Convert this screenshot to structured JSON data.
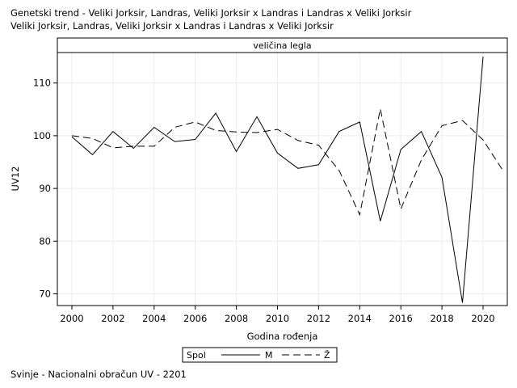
{
  "title_lines": [
    "Genetski trend - Veliki Jorksir, Landras, Veliki Jorksir x Landras i Landras x Veliki Jorksir",
    "Veliki Jorksir, Landras, Veliki Jorksir x Landras i Landras x Veliki Jorksir"
  ],
  "footnote": "Svinje - Nacionalni obračun UV - 2201",
  "chart_data": {
    "type": "line",
    "panel_label": "veličina legla",
    "xlabel": "Godina rođenja",
    "ylabel": "UV12",
    "xlim": [
      2000,
      2021
    ],
    "ylim": [
      68,
      115.5
    ],
    "xticks": [
      2000,
      2002,
      2004,
      2006,
      2008,
      2010,
      2012,
      2014,
      2016,
      2018,
      2020
    ],
    "yticks": [
      70,
      80,
      90,
      100,
      110
    ],
    "grid": true,
    "legend": {
      "title": "Spol",
      "position": "bottom-center"
    },
    "x": [
      2000,
      2001,
      2002,
      2003,
      2004,
      2005,
      2006,
      2007,
      2008,
      2009,
      2010,
      2011,
      2012,
      2013,
      2014,
      2015,
      2016,
      2017,
      2018,
      2019,
      2020,
      2021
    ],
    "series": [
      {
        "name": "M",
        "style": "solid",
        "values": [
          99.8,
          96.4,
          100.8,
          97.6,
          101.6,
          98.9,
          99.3,
          104.3,
          97.0,
          103.6,
          96.7,
          93.8,
          94.5,
          100.8,
          102.6,
          83.8,
          97.4,
          100.8,
          92.1,
          68.3,
          115.0,
          null
        ]
      },
      {
        "name": "Ž",
        "style": "dashed",
        "values": [
          100.0,
          99.5,
          97.7,
          98.0,
          98.0,
          101.6,
          102.6,
          101.0,
          100.7,
          100.6,
          101.2,
          99.1,
          98.2,
          93.4,
          85.0,
          105.1,
          86.1,
          95.4,
          101.9,
          102.9,
          99.2,
          93.2
        ]
      }
    ]
  }
}
